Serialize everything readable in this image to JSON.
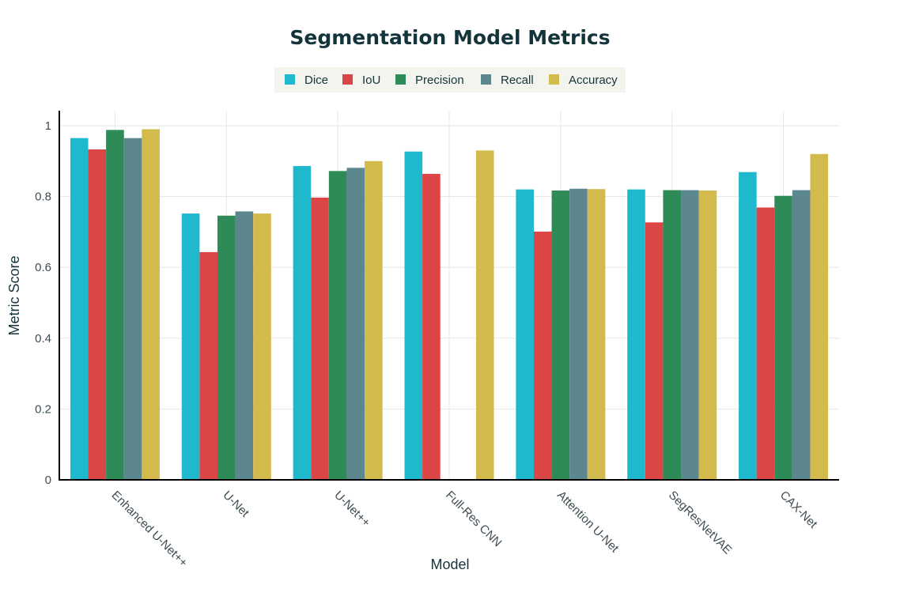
{
  "chart_data": {
    "type": "bar",
    "title": "Segmentation Model Metrics",
    "xlabel": "Model",
    "ylabel": "Metric Score",
    "ylim": [
      0,
      1.0
    ],
    "yticks": [
      0,
      0.2,
      0.4,
      0.6,
      0.8,
      1
    ],
    "ytick_labels": [
      "0",
      "0.2",
      "0.4",
      "0.6",
      "0.8",
      "1"
    ],
    "grid": true,
    "legend_position": "top-center",
    "categories": [
      "Enhanced U-Net++",
      "U-Net",
      "U-Net++",
      "Full-Res CNN",
      "Attention U-Net",
      "SegResNetVAE",
      "CAX-Net"
    ],
    "series": [
      {
        "name": "Dice",
        "color": "#1fb8cd",
        "values": [
          0.965,
          0.752,
          0.886,
          0.927,
          0.82,
          0.82,
          0.869
        ]
      },
      {
        "name": "IoU",
        "color": "#db4545",
        "values": [
          0.933,
          0.643,
          0.797,
          0.864,
          0.701,
          0.727,
          0.769
        ]
      },
      {
        "name": "Precision",
        "color": "#2e8b57",
        "values": [
          0.988,
          0.746,
          0.872,
          null,
          0.817,
          0.818,
          0.802
        ]
      },
      {
        "name": "Recall",
        "color": "#5d878f",
        "values": [
          0.965,
          0.758,
          0.881,
          null,
          0.822,
          0.818,
          0.818
        ]
      },
      {
        "name": "Accuracy",
        "color": "#d2ba4c",
        "values": [
          0.99,
          0.752,
          0.9,
          0.93,
          0.821,
          0.817,
          0.92
        ]
      }
    ]
  }
}
